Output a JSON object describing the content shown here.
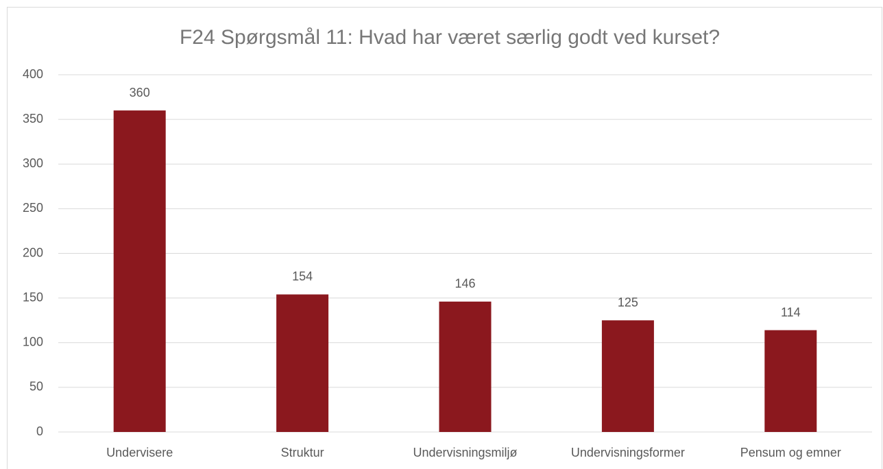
{
  "chart_data": {
    "type": "bar",
    "title": "F24 Spørgsmål 11: Hvad har været særlig godt ved kurset?",
    "categories": [
      "Undervisere",
      "Struktur",
      "Undervisningsmiljø",
      "Undervisningsformer",
      "Pensum og emner"
    ],
    "values": [
      360,
      154,
      146,
      125,
      114
    ],
    "color": "#8b181e",
    "ylim": [
      0,
      400
    ],
    "yticks": [
      0,
      50,
      100,
      150,
      200,
      250,
      300,
      350,
      400
    ],
    "grid": true
  }
}
